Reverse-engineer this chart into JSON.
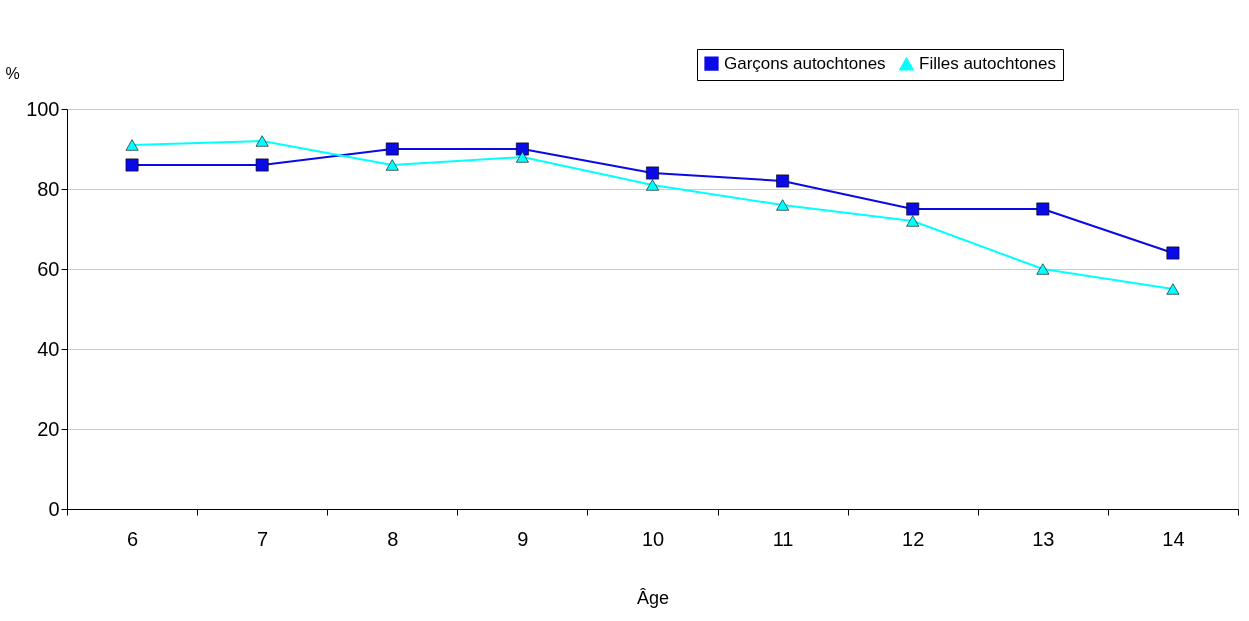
{
  "chart_data": {
    "type": "line",
    "xlabel": "Âge",
    "ylabel": "%",
    "categories": [
      "6",
      "7",
      "8",
      "9",
      "10",
      "11",
      "12",
      "13",
      "14"
    ],
    "series": [
      {
        "name": "Garçons autochtones",
        "color": "#0a0ae6",
        "marker": "square",
        "values": [
          86,
          86,
          90,
          90,
          84,
          82,
          75,
          75,
          64
        ]
      },
      {
        "name": "Filles autochtones",
        "color": "#00ffff",
        "marker": "triangle",
        "values": [
          91,
          92,
          86,
          88,
          81,
          76,
          72,
          60,
          55
        ]
      }
    ],
    "ylim": [
      0,
      100
    ],
    "yticks": [
      0,
      20,
      40,
      60,
      80,
      100
    ],
    "grid": "y",
    "legend": "top right",
    "line_style": "solid"
  }
}
